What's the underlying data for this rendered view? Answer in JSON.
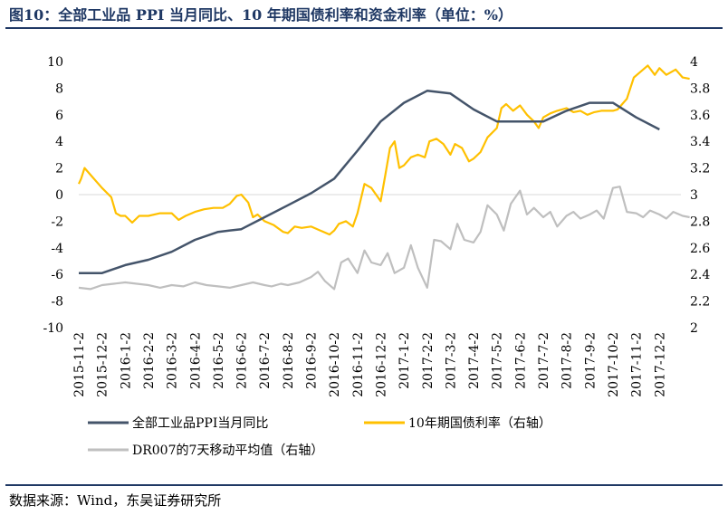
{
  "title": "图10：全部工业品 PPI 当月同比、10 年期国债利率和资金利率（单位：%）",
  "source": "数据来源：Wind，东吴证券研究所",
  "chart_data": {
    "type": "line",
    "title": "图10：全部工业品 PPI 当月同比、10 年期国债利率和资金利率（单位：%）",
    "x_tick_labels": [
      "2015-11-2",
      "2015-12-2",
      "2016-1-2",
      "2016-2-2",
      "2016-3-2",
      "2016-4-2",
      "2016-5-2",
      "2016-6-2",
      "2016-7-2",
      "2016-8-2",
      "2016-9-2",
      "2016-10-2",
      "2016-11-2",
      "2016-12-2",
      "2017-1-2",
      "2017-2-2",
      "2017-3-2",
      "2017-4-2",
      "2017-5-2",
      "2017-6-2",
      "2017-7-2",
      "2017-8-2",
      "2017-9-2",
      "2017-10-2",
      "2017-11-2",
      "2017-12-2"
    ],
    "left_axis": {
      "min": -10,
      "max": 10,
      "ticks": [
        "10",
        "8",
        "6",
        "4",
        "2",
        "0",
        "-2",
        "-4",
        "-6",
        "-8",
        "-10"
      ]
    },
    "right_axis": {
      "min": 2,
      "max": 4,
      "ticks": [
        "4",
        "3.8",
        "3.6",
        "3.4",
        "3.2",
        "3",
        "2.8",
        "2.6",
        "2.4",
        "2.2",
        "2"
      ]
    },
    "x_range": [
      0,
      26.5
    ],
    "series": [
      {
        "name": "全部工业品PPI当月同比",
        "axis": "left",
        "color": "#44546A",
        "x": [
          0,
          1,
          2,
          3,
          4,
          5,
          6,
          7,
          8,
          9,
          10,
          11,
          12,
          13,
          14,
          15,
          16,
          17,
          18,
          19,
          20,
          21,
          22,
          23,
          24,
          25
        ],
        "values": [
          -5.9,
          -5.9,
          -5.3,
          -4.9,
          -4.3,
          -3.4,
          -2.8,
          -2.6,
          -1.7,
          -0.8,
          0.1,
          1.2,
          3.3,
          5.5,
          6.9,
          7.8,
          7.6,
          6.4,
          5.5,
          5.5,
          5.5,
          6.3,
          6.9,
          6.9,
          5.8,
          4.9
        ]
      },
      {
        "name": "10年期国债利率（右轴）",
        "axis": "right",
        "color": "#FFC000",
        "x": [
          0,
          0.1,
          0.25,
          0.5,
          1,
          1.4,
          1.6,
          1.8,
          2.0,
          2.3,
          2.6,
          3,
          3.5,
          4,
          4.3,
          4.6,
          5,
          5.4,
          5.8,
          6.2,
          6.5,
          6.8,
          7,
          7.3,
          7.5,
          7.7,
          8,
          8.4,
          8.8,
          9,
          9.3,
          9.6,
          10,
          10.4,
          10.8,
          11,
          11.2,
          11.5,
          11.8,
          12,
          12.3,
          12.6,
          13,
          13.2,
          13.4,
          13.6,
          13.8,
          14.0,
          14.3,
          14.6,
          14.9,
          15.1,
          15.4,
          15.7,
          16,
          16.2,
          16.5,
          16.8,
          17,
          17.3,
          17.6,
          18,
          18.2,
          18.4,
          18.7,
          19,
          19.3,
          19.6,
          19.8,
          20,
          20.3,
          20.6,
          21,
          21.3,
          21.6,
          21.9,
          22.2,
          22.5,
          22.8,
          23,
          23.2,
          23.4,
          23.6,
          23.9,
          24.1,
          24.5,
          24.8,
          25,
          25.3,
          25.7,
          26,
          26.3
        ],
        "values": [
          3.08,
          3.12,
          3.2,
          3.15,
          3.05,
          2.98,
          2.86,
          2.84,
          2.84,
          2.79,
          2.84,
          2.84,
          2.86,
          2.86,
          2.81,
          2.84,
          2.87,
          2.89,
          2.9,
          2.9,
          2.93,
          2.99,
          3.0,
          2.94,
          2.83,
          2.85,
          2.8,
          2.77,
          2.72,
          2.71,
          2.76,
          2.75,
          2.76,
          2.73,
          2.7,
          2.73,
          2.78,
          2.8,
          2.76,
          2.86,
          3.08,
          3.05,
          2.95,
          3.15,
          3.35,
          3.4,
          3.2,
          3.22,
          3.28,
          3.3,
          3.28,
          3.4,
          3.42,
          3.38,
          3.3,
          3.38,
          3.35,
          3.25,
          3.27,
          3.32,
          3.43,
          3.5,
          3.65,
          3.68,
          3.63,
          3.67,
          3.6,
          3.55,
          3.5,
          3.58,
          3.61,
          3.63,
          3.65,
          3.62,
          3.63,
          3.6,
          3.62,
          3.63,
          3.63,
          3.63,
          3.64,
          3.68,
          3.72,
          3.88,
          3.91,
          3.97,
          3.9,
          3.95,
          3.9,
          3.94,
          3.88,
          3.87
        ]
      },
      {
        "name": "DR007的7天移动平均值（右轴）",
        "axis": "right",
        "color": "#BFBFBF",
        "x": [
          0,
          0.5,
          1,
          1.5,
          2,
          2.5,
          3,
          3.5,
          4,
          4.5,
          5,
          5.5,
          6,
          6.5,
          7,
          7.5,
          8,
          8.3,
          8.7,
          9,
          9.5,
          10,
          10.3,
          10.6,
          11,
          11.3,
          11.6,
          12,
          12.3,
          12.6,
          13,
          13.3,
          13.6,
          14,
          14.3,
          14.6,
          15,
          15.3,
          15.6,
          16,
          16.3,
          16.6,
          17,
          17.3,
          17.6,
          18,
          18.3,
          18.6,
          19,
          19.3,
          19.6,
          20,
          20.3,
          20.6,
          21,
          21.3,
          21.6,
          22,
          22.3,
          22.6,
          23,
          23.3,
          23.6,
          24,
          24.3,
          24.6,
          25,
          25.3,
          25.6,
          26,
          26.3
        ],
        "values": [
          2.3,
          2.29,
          2.32,
          2.33,
          2.34,
          2.33,
          2.32,
          2.3,
          2.32,
          2.31,
          2.34,
          2.32,
          2.31,
          2.3,
          2.32,
          2.34,
          2.32,
          2.31,
          2.33,
          2.32,
          2.34,
          2.38,
          2.42,
          2.35,
          2.29,
          2.49,
          2.52,
          2.41,
          2.58,
          2.49,
          2.47,
          2.56,
          2.41,
          2.45,
          2.62,
          2.45,
          2.3,
          2.66,
          2.65,
          2.59,
          2.78,
          2.66,
          2.64,
          2.72,
          2.92,
          2.85,
          2.73,
          2.93,
          3.03,
          2.85,
          2.9,
          2.83,
          2.87,
          2.76,
          2.84,
          2.87,
          2.82,
          2.85,
          2.88,
          2.82,
          3.05,
          3.06,
          2.87,
          2.86,
          2.83,
          2.88,
          2.85,
          2.82,
          2.87,
          2.84,
          2.83
        ]
      }
    ]
  }
}
